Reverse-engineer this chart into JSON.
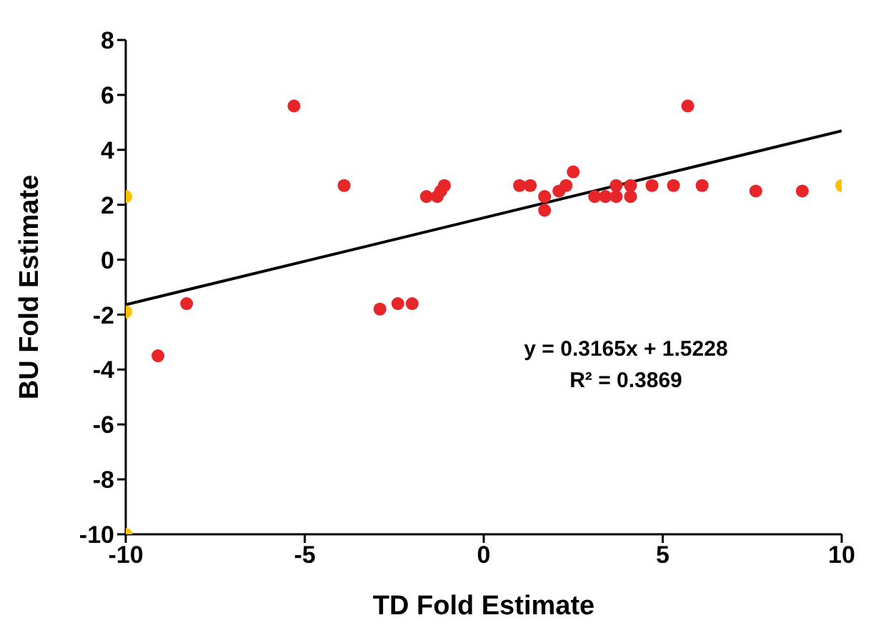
{
  "chart_data": {
    "type": "scatter",
    "xlabel": "TD Fold Estimate",
    "ylabel": "BU Fold Estimate",
    "xlim": [
      -10,
      10
    ],
    "xticks": [
      -10,
      -5,
      0,
      5,
      10
    ],
    "ylim": [
      -10,
      8
    ],
    "yticks": [
      -10,
      -8,
      -6,
      -4,
      -2,
      0,
      2,
      4,
      6,
      8
    ],
    "grid": false,
    "series": [
      {
        "color": "#e8262a",
        "x": [
          -9.1,
          -8.3,
          -5.3,
          -3.9,
          -2.9,
          -2.4,
          -2.0,
          -1.6,
          -1.3,
          -1.1,
          -1.2,
          1.0,
          1.3,
          1.7,
          1.7,
          2.1,
          2.3,
          2.5,
          3.1,
          3.4,
          3.7,
          3.7,
          4.1,
          4.1,
          4.7,
          5.3,
          5.7,
          6.1,
          7.6,
          8.9
        ],
        "values": [
          -3.5,
          -1.6,
          5.6,
          2.7,
          -1.8,
          -1.6,
          -1.6,
          2.3,
          2.3,
          2.7,
          2.5,
          2.7,
          2.7,
          2.3,
          1.8,
          2.5,
          2.7,
          3.2,
          2.3,
          2.3,
          2.3,
          2.7,
          2.3,
          2.7,
          2.7,
          2.7,
          5.6,
          2.7,
          2.5,
          2.5
        ]
      },
      {
        "color": "#ffc000",
        "x": [
          -10,
          -10,
          -10,
          10
        ],
        "values": [
          2.3,
          -1.9,
          -10,
          2.7
        ]
      },
      {
        "type": "line",
        "color": "#000000",
        "x": [
          -10,
          10
        ],
        "values": [
          -1.64,
          4.69
        ],
        "marker": "none"
      }
    ],
    "annotations": [
      "y = 0.3165x + 1.5228",
      "R² = 0.3869"
    ]
  }
}
